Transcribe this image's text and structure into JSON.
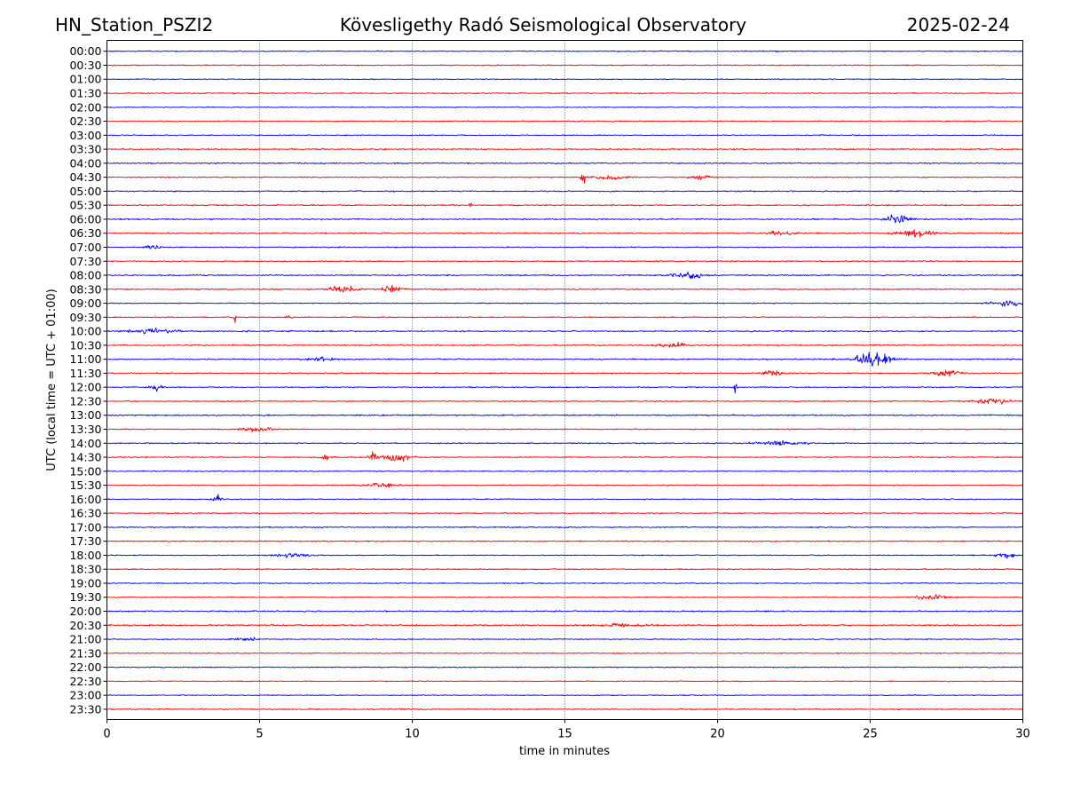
{
  "header": {
    "station": "HN_Station_PSZI2",
    "observatory": "Kövesligethy Radó Seismological Observatory",
    "date": "2025-02-24"
  },
  "chart_data": {
    "type": "line",
    "title": "Kövesligethy Radó Seismological Observatory",
    "xlabel": "time in minutes",
    "ylabel": "UTC (local time = UTC + 01:00)",
    "xlim": [
      0,
      30
    ],
    "xticks": [
      0,
      5,
      10,
      15,
      20,
      25,
      30
    ],
    "grid": "vertical dotted at each 5 minutes",
    "colors": [
      "#0000ff",
      "#ff0000"
    ],
    "rows": [
      "00:00",
      "00:30",
      "01:00",
      "01:30",
      "02:00",
      "02:30",
      "03:00",
      "03:30",
      "04:00",
      "04:30",
      "05:00",
      "05:30",
      "06:00",
      "06:30",
      "07:00",
      "07:30",
      "08:00",
      "08:30",
      "09:00",
      "09:30",
      "10:00",
      "10:30",
      "11:00",
      "11:30",
      "12:00",
      "12:30",
      "13:00",
      "13:30",
      "14:00",
      "14:30",
      "15:00",
      "15:30",
      "16:00",
      "16:30",
      "17:00",
      "17:30",
      "18:00",
      "18:30",
      "19:00",
      "19:30",
      "20:00",
      "20:30",
      "21:00",
      "21:30",
      "22:00",
      "22:30",
      "23:00",
      "23:30"
    ],
    "events": [
      {
        "row": "04:30",
        "minute": 15.6,
        "amplitude": 7,
        "width": 0.05
      },
      {
        "row": "04:30",
        "minute": 16.5,
        "amplitude": 1.5,
        "width": 0.6
      },
      {
        "row": "04:30",
        "minute": 19.5,
        "amplitude": 1.5,
        "width": 0.4
      },
      {
        "row": "05:30",
        "minute": 11.9,
        "amplitude": 2,
        "width": 0.04
      },
      {
        "row": "06:00",
        "minute": 25.9,
        "amplitude": 4,
        "width": 0.35
      },
      {
        "row": "06:30",
        "minute": 26.5,
        "amplitude": 2.5,
        "width": 0.6
      },
      {
        "row": "06:30",
        "minute": 22.0,
        "amplitude": 1.5,
        "width": 0.5
      },
      {
        "row": "07:00",
        "minute": 1.5,
        "amplitude": 1.5,
        "width": 0.3
      },
      {
        "row": "08:00",
        "minute": 19.0,
        "amplitude": 2.5,
        "width": 0.5
      },
      {
        "row": "08:30",
        "minute": 7.7,
        "amplitude": 2,
        "width": 0.5
      },
      {
        "row": "08:30",
        "minute": 9.3,
        "amplitude": 3,
        "width": 0.3
      },
      {
        "row": "09:00",
        "minute": 29.5,
        "amplitude": 2.5,
        "width": 0.5
      },
      {
        "row": "09:30",
        "minute": 4.2,
        "amplitude": 6,
        "width": 0.04
      },
      {
        "row": "09:30",
        "minute": 6.0,
        "amplitude": 2,
        "width": 0.1
      },
      {
        "row": "10:00",
        "minute": 4.6,
        "amplitude": 5,
        "width": 0.04
      },
      {
        "row": "10:00",
        "minute": 1.5,
        "amplitude": 1.5,
        "width": 0.8
      },
      {
        "row": "10:30",
        "minute": 18.5,
        "amplitude": 1.5,
        "width": 0.5
      },
      {
        "row": "11:00",
        "minute": 25.1,
        "amplitude": 6,
        "width": 0.5
      },
      {
        "row": "11:00",
        "minute": 7.0,
        "amplitude": 1.5,
        "width": 0.5
      },
      {
        "row": "11:30",
        "minute": 21.8,
        "amplitude": 3,
        "width": 0.3
      },
      {
        "row": "11:30",
        "minute": 27.5,
        "amplitude": 2,
        "width": 0.5
      },
      {
        "row": "12:00",
        "minute": 20.6,
        "amplitude": 7,
        "width": 0.04
      },
      {
        "row": "12:00",
        "minute": 1.6,
        "amplitude": 2,
        "width": 0.2
      },
      {
        "row": "12:30",
        "minute": 29.0,
        "amplitude": 2,
        "width": 0.6
      },
      {
        "row": "13:30",
        "minute": 5.0,
        "amplitude": 1.5,
        "width": 0.6
      },
      {
        "row": "14:00",
        "minute": 22.0,
        "amplitude": 1.5,
        "width": 0.8
      },
      {
        "row": "14:30",
        "minute": 8.7,
        "amplitude": 3,
        "width": 0.15
      },
      {
        "row": "14:30",
        "minute": 9.5,
        "amplitude": 3,
        "width": 0.4
      },
      {
        "row": "14:30",
        "minute": 7.2,
        "amplitude": 2,
        "width": 0.2
      },
      {
        "row": "15:30",
        "minute": 9.0,
        "amplitude": 1.5,
        "width": 0.5
      },
      {
        "row": "16:00",
        "minute": 3.6,
        "amplitude": 3,
        "width": 0.15
      },
      {
        "row": "18:00",
        "minute": 6.0,
        "amplitude": 2,
        "width": 0.6
      },
      {
        "row": "18:00",
        "minute": 29.4,
        "amplitude": 2,
        "width": 0.3
      },
      {
        "row": "19:30",
        "minute": 27.0,
        "amplitude": 1.5,
        "width": 0.6
      },
      {
        "row": "20:30",
        "minute": 17.0,
        "amplitude": 1.2,
        "width": 0.8
      },
      {
        "row": "21:00",
        "minute": 4.5,
        "amplitude": 1.5,
        "width": 0.4
      }
    ]
  }
}
